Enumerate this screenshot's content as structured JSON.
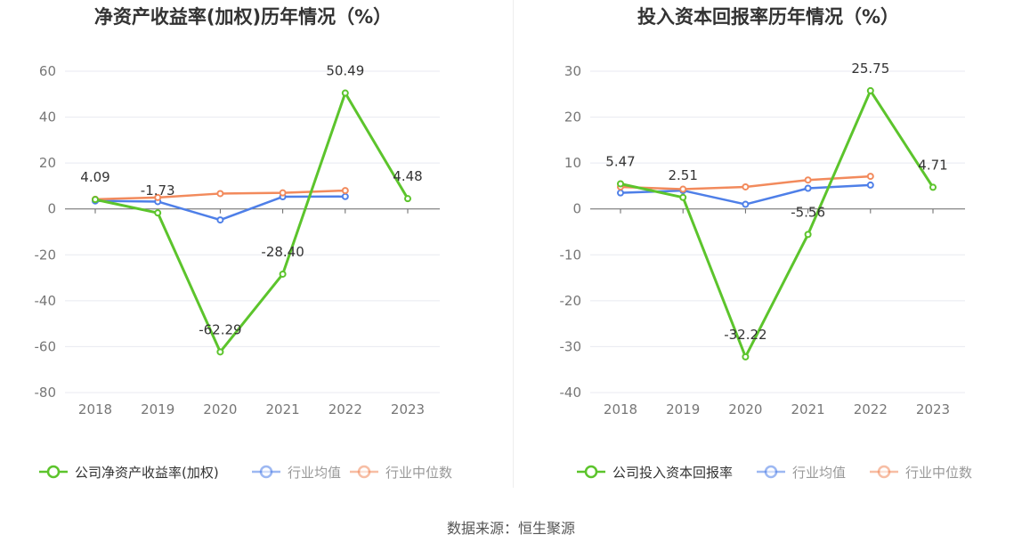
{
  "source_text": "数据来源：恒生聚源",
  "chart_data": [
    {
      "type": "line",
      "title": "净资产收益率(加权)历年情况（%）",
      "categories": [
        "2018",
        "2019",
        "2020",
        "2021",
        "2022",
        "2023"
      ],
      "ylim": [
        -80,
        60
      ],
      "yticks": [
        60,
        40,
        20,
        0,
        -20,
        -40,
        -60,
        -80
      ],
      "grid": true,
      "legend_position": "bottom",
      "series": [
        {
          "name": "公司净资产收益率(加权)",
          "color": "#5cc42c",
          "values": [
            4.09,
            -1.73,
            -62.29,
            -28.4,
            50.49,
            4.48
          ],
          "labels": [
            "4.09",
            "-1.73",
            "-62.29",
            "-28.40",
            "50.49",
            "4.48"
          ]
        },
        {
          "name": "行业均值",
          "color": "#4e7fe8",
          "values": [
            3.5,
            3.2,
            -4.8,
            5.3,
            5.4,
            null
          ]
        },
        {
          "name": "行业中位数",
          "color": "#f28a5c",
          "values": [
            4.2,
            5.0,
            6.7,
            7.0,
            8.0,
            null
          ]
        }
      ]
    },
    {
      "type": "line",
      "title": "投入资本回报率历年情况（%）",
      "categories": [
        "2018",
        "2019",
        "2020",
        "2021",
        "2022",
        "2023"
      ],
      "ylim": [
        -40,
        30
      ],
      "yticks": [
        30,
        20,
        10,
        0,
        -10,
        -20,
        -30,
        -40
      ],
      "grid": true,
      "legend_position": "bottom",
      "series": [
        {
          "name": "公司投入资本回报率",
          "color": "#5cc42c",
          "values": [
            5.47,
            2.51,
            -32.22,
            -5.56,
            25.75,
            4.71
          ],
          "labels": [
            "5.47",
            "2.51",
            "-32.22",
            "-5.56",
            "25.75",
            "4.71"
          ]
        },
        {
          "name": "行业均值",
          "color": "#4e7fe8",
          "values": [
            3.5,
            4.0,
            1.0,
            4.5,
            5.2,
            null
          ]
        },
        {
          "name": "行业中位数",
          "color": "#f28a5c",
          "values": [
            4.8,
            4.3,
            4.8,
            6.3,
            7.1,
            null
          ]
        }
      ]
    }
  ]
}
